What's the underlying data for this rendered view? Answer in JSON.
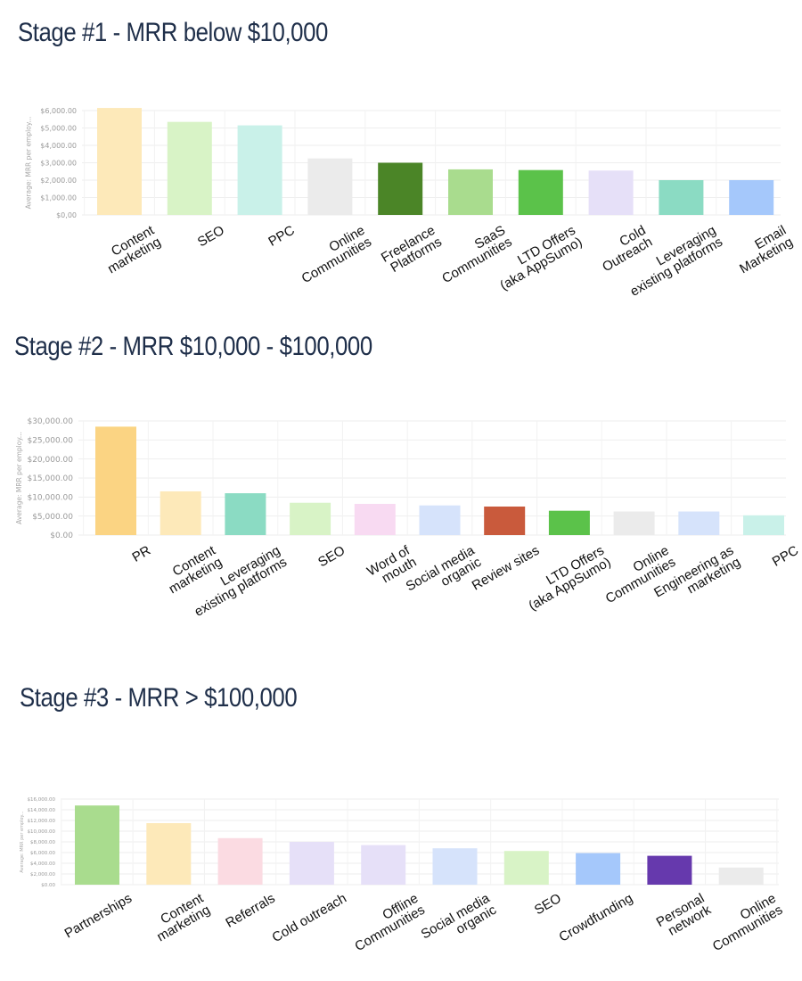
{
  "stages": [
    {
      "title": "Stage #1 - MRR below $10,000"
    },
    {
      "title": "Stage #2 - MRR $10,000 - $100,000"
    },
    {
      "title": "Stage #3 - MRR > $100,000"
    }
  ],
  "chart_data": [
    {
      "type": "bar",
      "title": "Stage #1 - MRR below $10,000",
      "ylabel": "Average: MRR per employ...",
      "ylim": [
        0,
        6000
      ],
      "yticks": [
        "$0,00",
        "$1,000.00",
        "$2,000.00",
        "$3,000.00",
        "$4,000.00",
        "$5,000.00",
        "$6,000.00"
      ],
      "grid": true,
      "categories": [
        "Content\nmarketing",
        "SEO",
        "PPC",
        "Online\nCommunities",
        "Freelance\nPlatforms",
        "SaaS\nCommunities",
        "LTD Offers\n(aka AppSumo)",
        "Cold\nOutreach",
        "Leveraging\nexisting platforms",
        "Email\nMarketing"
      ],
      "values": [
        6150,
        5350,
        5150,
        3250,
        3000,
        2620,
        2580,
        2550,
        2000,
        2000
      ],
      "colors": [
        "#fde9b9",
        "#d8f3c6",
        "#c9f1e9",
        "#ebebeb",
        "#4b8527",
        "#a9dc8e",
        "#5bc24a",
        "#e6e0f8",
        "#8bdbc3",
        "#a5c8fb"
      ]
    },
    {
      "type": "bar",
      "title": "Stage #2 - MRR $10,000 - $100,000",
      "ylabel": "Average: MRR per employ...",
      "ylim": [
        0,
        30000
      ],
      "yticks": [
        "$0.00",
        "$5,000.00",
        "$10,000.00",
        "$15,000.00",
        "$20,000.00",
        "$25,000.00",
        "$30,000.00"
      ],
      "grid": true,
      "categories": [
        "PR",
        "Content\nmarketing",
        "Leveraging\nexisting platforms",
        "SEO",
        "Word of\nmouth",
        "Social media\norganic",
        "Review sites",
        "LTD Offers\n(aka AppSumo)",
        "Online\nCommunities",
        "Engineering as\nmarketing",
        "PPC"
      ],
      "values": [
        28500,
        11500,
        11000,
        8500,
        8200,
        7800,
        7500,
        6400,
        6200,
        6200,
        5200
      ],
      "colors": [
        "#fbd483",
        "#fde9b9",
        "#8bdbc3",
        "#d8f3c6",
        "#f8daf2",
        "#d6e3fb",
        "#c95a3c",
        "#5bc24a",
        "#ebebeb",
        "#d6e3fb",
        "#c9f1e9"
      ]
    },
    {
      "type": "bar",
      "title": "Stage #3 - MRR > $100,000",
      "ylabel": "Average: MRR per employ...",
      "ylim": [
        0,
        16000
      ],
      "yticks": [
        "$0.00",
        "$2,000.00",
        "$4,000.00",
        "$6,000.00",
        "$8,000.00",
        "$10,000.00",
        "$12,000.00",
        "$14,000.00",
        "$16,000.00"
      ],
      "grid": true,
      "categories": [
        "Partnerships",
        "Content\nmarketing",
        "Referrals",
        "Cold outreach",
        "Offline\nCommunities",
        "Social media\norganic",
        "SEO",
        "Crowdfunding",
        "Personal\nnetwork",
        "Online\nCommunities"
      ],
      "values": [
        14800,
        11500,
        8700,
        8000,
        7400,
        6800,
        6300,
        5900,
        5400,
        3200
      ],
      "colors": [
        "#a9dc8e",
        "#fde9b9",
        "#fbdbe2",
        "#e6e0f8",
        "#e6e0f8",
        "#d6e3fb",
        "#d8f3c6",
        "#a5c8fb",
        "#6639ad",
        "#ebebeb"
      ]
    }
  ]
}
